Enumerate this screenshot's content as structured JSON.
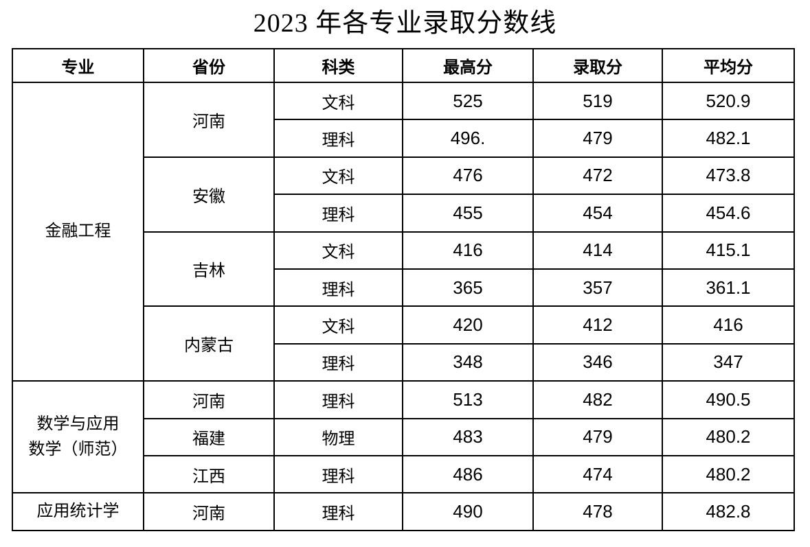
{
  "title": "2023 年各专业录取分数线",
  "table": {
    "headers": [
      "专业",
      "省份",
      "科类",
      "最高分",
      "录取分",
      "平均分"
    ],
    "majors": [
      {
        "name": "金融工程",
        "provinces": [
          {
            "name": "河南",
            "rows": [
              {
                "subject": "文科",
                "max": "525",
                "admit": "519",
                "avg": "520.9"
              },
              {
                "subject": "理科",
                "max": "496.",
                "admit": "479",
                "avg": "482.1"
              }
            ]
          },
          {
            "name": "安徽",
            "rows": [
              {
                "subject": "文科",
                "max": "476",
                "admit": "472",
                "avg": "473.8"
              },
              {
                "subject": "理科",
                "max": "455",
                "admit": "454",
                "avg": "454.6"
              }
            ]
          },
          {
            "name": "吉林",
            "rows": [
              {
                "subject": "文科",
                "max": "416",
                "admit": "414",
                "avg": "415.1"
              },
              {
                "subject": "理科",
                "max": "365",
                "admit": "357",
                "avg": "361.1"
              }
            ]
          },
          {
            "name": "内蒙古",
            "rows": [
              {
                "subject": "文科",
                "max": "420",
                "admit": "412",
                "avg": "416"
              },
              {
                "subject": "理科",
                "max": "348",
                "admit": "346",
                "avg": "347"
              }
            ]
          }
        ]
      },
      {
        "name": "数学与应用\n数学（师范）",
        "provinces": [
          {
            "name": "河南",
            "rows": [
              {
                "subject": "理科",
                "max": "513",
                "admit": "482",
                "avg": "490.5"
              }
            ]
          },
          {
            "name": "福建",
            "rows": [
              {
                "subject": "物理",
                "max": "483",
                "admit": "479",
                "avg": "480.2"
              }
            ]
          },
          {
            "name": "江西",
            "rows": [
              {
                "subject": "理科",
                "max": "486",
                "admit": "474",
                "avg": "480.2"
              }
            ]
          }
        ]
      },
      {
        "name": "应用统计学",
        "provinces": [
          {
            "name": "河南",
            "rows": [
              {
                "subject": "理科",
                "max": "490",
                "admit": "478",
                "avg": "482.8"
              }
            ]
          }
        ]
      }
    ]
  }
}
